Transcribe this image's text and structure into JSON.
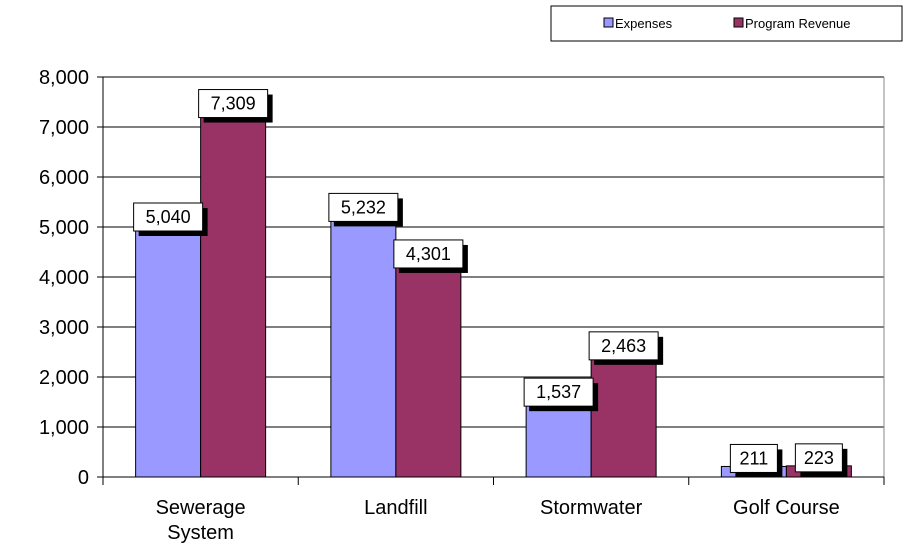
{
  "chart_data": {
    "type": "bar",
    "categories": [
      "Sewerage System",
      "Landfill",
      "Stormwater",
      "Golf Course"
    ],
    "category_lines": [
      [
        "Sewerage",
        "System"
      ],
      [
        "Landfill"
      ],
      [
        "Stormwater"
      ],
      [
        "Golf Course"
      ]
    ],
    "series": [
      {
        "name": "Expenses",
        "values": [
          5040,
          5232,
          1537,
          211
        ],
        "color": "#9999ff"
      },
      {
        "name": "Program Revenue",
        "values": [
          7309,
          4301,
          2463,
          223
        ],
        "color": "#993366"
      }
    ],
    "data_labels": [
      [
        "5,040",
        "5,232",
        "1,537",
        "211"
      ],
      [
        "7,309",
        "4,301",
        "2,463",
        "223"
      ]
    ],
    "y_ticks": [
      "0",
      "1,000",
      "2,000",
      "3,000",
      "4,000",
      "5,000",
      "6,000",
      "7,000",
      "8,000"
    ],
    "ylim": [
      0,
      8000
    ],
    "y_step": 1000,
    "grid": true,
    "legend_position": "top-right",
    "title": "",
    "xlabel": "",
    "ylabel": ""
  }
}
